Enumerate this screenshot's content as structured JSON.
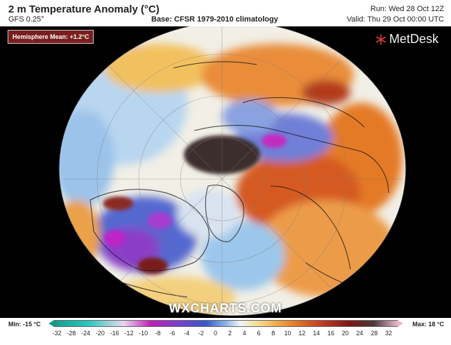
{
  "header": {
    "title": "2 m Temperature Anomaly (°C)",
    "model": "GFS 0.25°",
    "base": "Base: CFSR 1979-2010 climatology",
    "run": "Run: Wed 28 Oct 12Z",
    "valid": "Valid: Thu 29 Oct 00:00 UTC"
  },
  "badge": {
    "text": "Hemisphere Mean: +1.2°C"
  },
  "logo": {
    "text": "MetDesk",
    "icon": "snowflake-icon"
  },
  "watermark": "WXCHARTS.COM",
  "footer": {
    "min_label": "Min: -15 °C",
    "max_label": "Max: 18 °C",
    "ticks": [
      "-32",
      "-28",
      "-24",
      "-20",
      "-16",
      "-12",
      "-10",
      "-8",
      "-6",
      "-4",
      "-2",
      "0",
      "2",
      "4",
      "6",
      "8",
      "10",
      "12",
      "14",
      "16",
      "20",
      "24",
      "28",
      "32"
    ]
  },
  "colors": {
    "ocean_blue": "#a8c9ea",
    "cold_purple": "#9a2cc9",
    "warm_orange": "#e27b2b",
    "hot_dark": "#4b3535",
    "badge_red": "#7a1f1f"
  }
}
